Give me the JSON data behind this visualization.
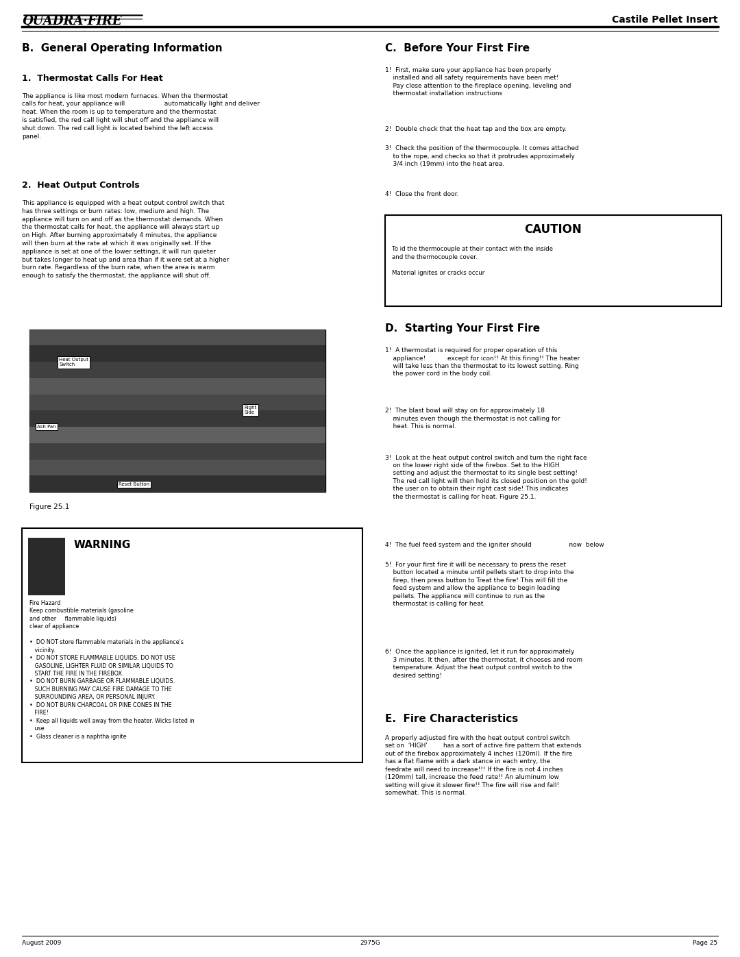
{
  "page_width": 10.8,
  "page_height": 13.97,
  "bg_color": "#ffffff",
  "header": {
    "logo_text": "QUADRA·FIRE",
    "right_text": "Castile Pellet Insert",
    "line_color": "#000000"
  },
  "footer": {
    "left": "August 2009",
    "center": "2975G",
    "right": "Page 25"
  },
  "left_col": {
    "section_title": "B.  General Operating Information",
    "sub1_title": "1.  Thermostat Calls For Heat",
    "sub1_body": "The appliance is like most modern furnaces. When the thermostat\ncalls for heat, your appliance will                    automatically light and deliver\nheat. When the room is up to temperature and the thermostat\nis satisfied, the red call light will shut off and the appliance will\nshut down. The red call light is located behind the left access\npanel.",
    "sub2_title": "2.  Heat Output Controls",
    "sub2_body": "This appliance is equipped with a heat output control switch that\nhas three settings or burn rates: low, medium and high. The\nappliance will turn on and off as the thermostat demands. When\nthe thermostat calls for heat, the appliance will always start up\non High. After burning approximately 4 minutes, the appliance\nwill then burn at the rate at which it was originally set. If the\nappliance is set at one of the lower settings, it will run quieter\nbut takes longer to heat up and area than if it were set at a higher\nburn rate. Regardless of the burn rate, when the area is warm\nenough to satisfy the thermostat, the appliance will shut off.",
    "figure_label": "Figure 25.1",
    "figure_labels_inside": {
      "heat_output": "Heat Output\nSwitch",
      "right_side": "Right\nSide",
      "ash_pan": "Ash Pan",
      "reset_button": "Reset Button"
    },
    "warning_box": {
      "title": "WARNING",
      "icon_color": "#2a2a2a",
      "lines": [
        "Fire Hazard",
        "Keep combustible materials (gasoline",
        "and other     flammable liquids)",
        "clear of appliance",
        "",
        "•  DO NOT store flammable materials in the appliance's\n   vicinity.",
        "•  DO NOT STORE FLAMMABLE LIQUIDS. DO NOT USE\n   GASOLINE, LIGHTER FLUID OR SIMILAR LIQUIDS TO\n   START THE FIRE IN THE FIREBOX.",
        "•  DO NOT BURN GARBAGE OR FLAMMABLE LIQUIDS.\n   SUCH BURNING MAY CAUSE FIRE DAMAGE TO THE\n   SURROUNDING AREA, OR PERSONAL INJURY.",
        "•  DO NOT BURN CHARCOAL OR PINE CONES IN THE\n   FIRE!",
        "•  Keep all liquids well away from the heater. Wicks listed in\n   use",
        "•  Glass cleaner is a naphtha ignite"
      ]
    }
  },
  "right_col": {
    "sectionC_title": "C.  Before Your First Fire",
    "sectionC_items": [
      "1!  First, make sure your appliance has been properly\n    installed and all safety requirements have been met!\n    Pay close attention to the fireplace opening, leveling and\n    thermostat installation instructions",
      "2!  Double check that the heat tap and the box are empty.",
      "3!  Check the position of the thermocouple. It comes attached\n    to the rope, and checks so that it protrudes approximately\n    3/4 inch (19mm) into the heat area.",
      "4!  Close the front door."
    ],
    "caution_box": {
      "title": "CAUTION",
      "lines": [
        "To id the thermocouple at their contact with the inside",
        "and the thermocouple cover.",
        "",
        "Material ignites or cracks occur"
      ]
    },
    "sectionD_title": "D.  Starting Your First Fire",
    "sectionD_items": [
      "1!  A thermostat is required for proper operation of this\n    appliance!           except for icon!! At this firing!! The heater\n    will take less than the thermostat to its lowest setting. Ring\n    the power cord in the body coil.",
      "2!  The blast bowl will stay on for approximately 18\n    minutes even though the thermostat is not calling for\n    heat. This is normal.",
      "3!  Look at the heat output control switch and turn the right face\n    on the lower right side of the firebox. Set to the HIGH\n    setting and adjust the thermostat to its single best setting!\n    The red call light will then hold its closed position on the gold!\n    the user on to obtain their right cast side! This indicates\n    the thermostat is calling for heat. Figure 25.1.",
      "4!  The fuel feed system and the igniter should                   now  below",
      "5!  For your first fire it will be necessary to press the reset\n    button located a minute until pellets start to drop into the\n    firep, then press button to Treat the fire! This will fill the\n    feed system and allow the appliance to begin loading\n    pellets. The appliance will continue to run as the\n    thermostat is calling for heat.",
      "6!  Once the appliance is ignited, let it run for approximately\n    3 minutes. It then, after the thermostat, it chooses and room\n    temperature. Adjust the heat output control switch to the\n    desired setting!"
    ],
    "sectionE_title": "E.  Fire Characteristics",
    "sectionE_body": "A properly adjusted fire with the heat output control switch\nset on  'HIGH'        has a sort of active fire pattern that extends\nout of the firebox approximately 4 inches (120ml). If the fire\nhas a flat flame with a dark stance in each entry, the\nfeedrate will need to increase!!! If the fire is not 4 inches\n(120mm) tall, increase the feed rate!! An aluminum low\nsetting will give it slower fire!! The fire will rise and fall!\nsomewhat. This is normal."
  }
}
